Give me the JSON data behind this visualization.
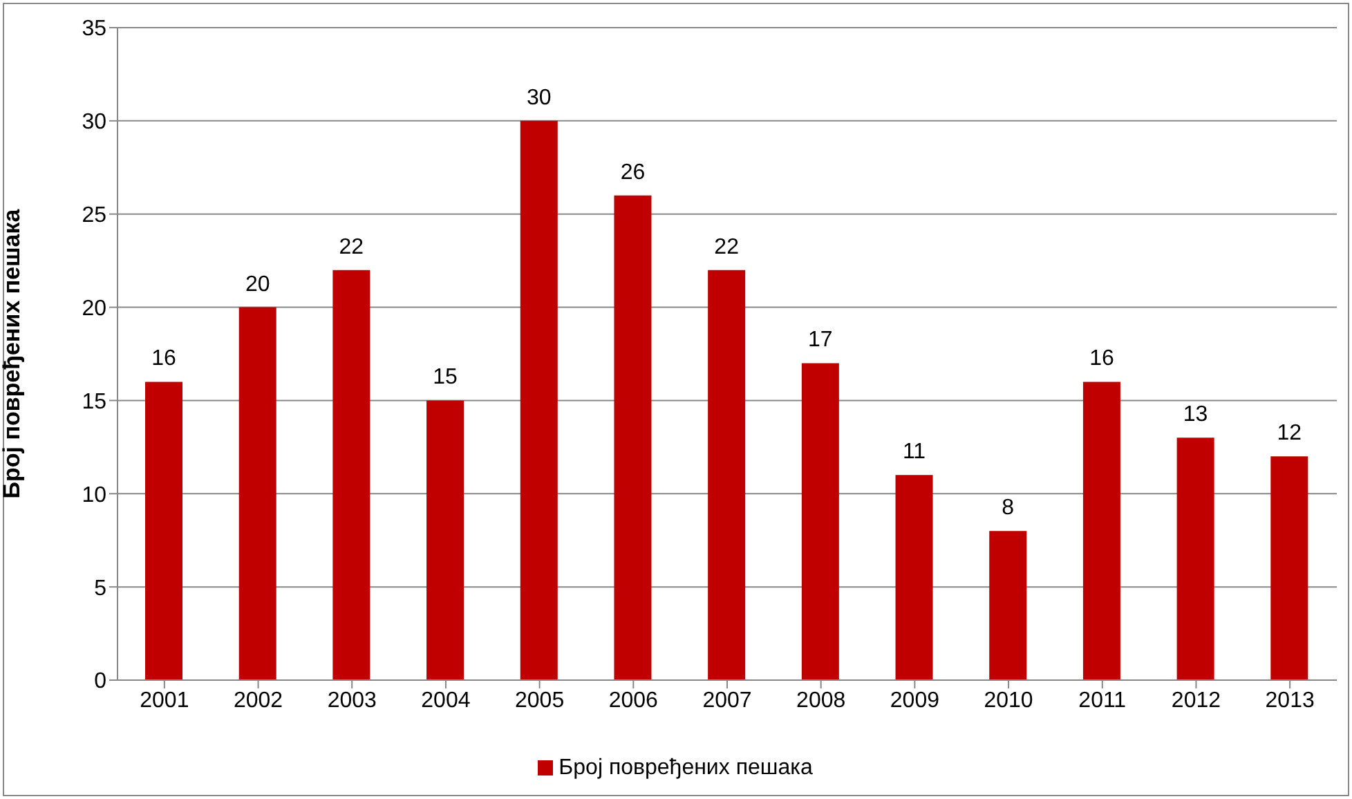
{
  "chart_data": {
    "type": "bar",
    "ylabel": "Број повређених пешака",
    "categories": [
      "2001",
      "2002",
      "2003",
      "2004",
      "2005",
      "2006",
      "2007",
      "2008",
      "2009",
      "2010",
      "2011",
      "2012",
      "2013"
    ],
    "series": [
      {
        "name": "Број повређених пешака",
        "color": "#c00000",
        "values": [
          16,
          20,
          22,
          15,
          30,
          26,
          22,
          17,
          11,
          8,
          16,
          13,
          12
        ]
      }
    ],
    "ylim": [
      0,
      35
    ],
    "yticks": [
      0,
      5,
      10,
      15,
      20,
      25,
      30,
      35
    ],
    "grid": "y",
    "legend": "bottom",
    "data_labels": true
  }
}
